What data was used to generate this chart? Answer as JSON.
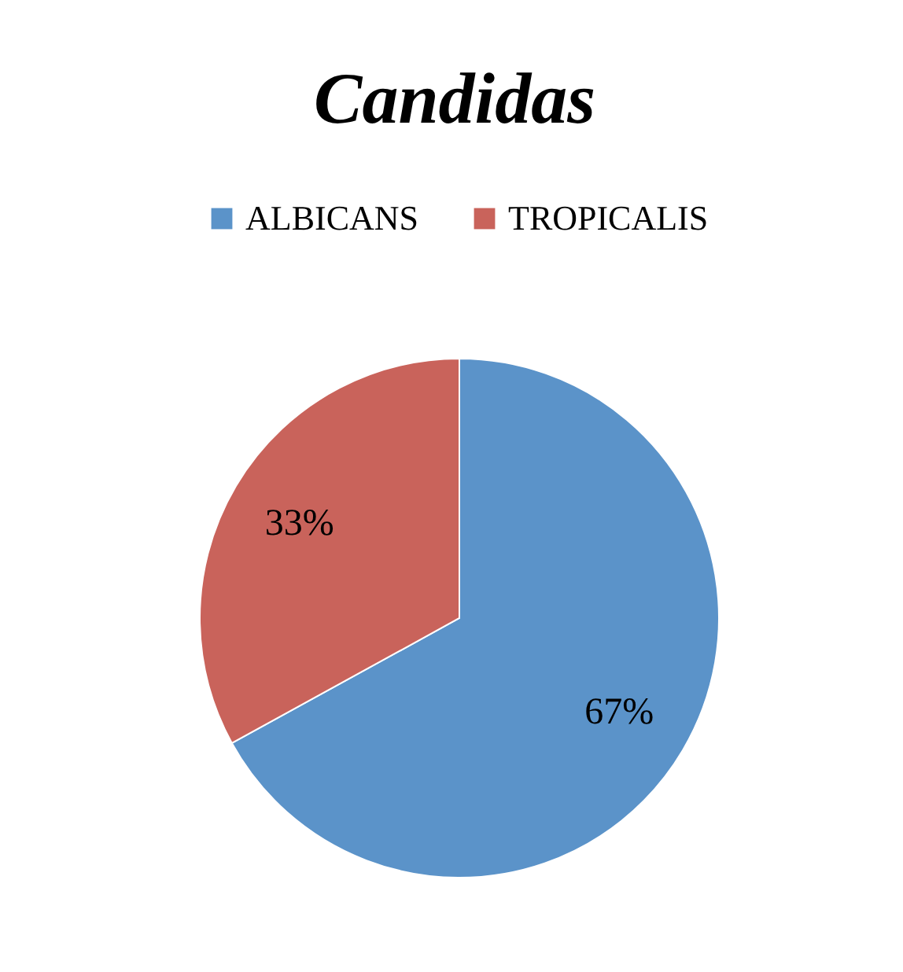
{
  "chart_data": {
    "type": "pie",
    "title": "Candidas",
    "categories": [
      "ALBICANS",
      "TROPICALIS"
    ],
    "values": [
      67,
      33
    ],
    "colors": [
      "#5b93c9",
      "#c9635b"
    ],
    "legend": "top",
    "value_labels": [
      "67%",
      "33%"
    ]
  }
}
